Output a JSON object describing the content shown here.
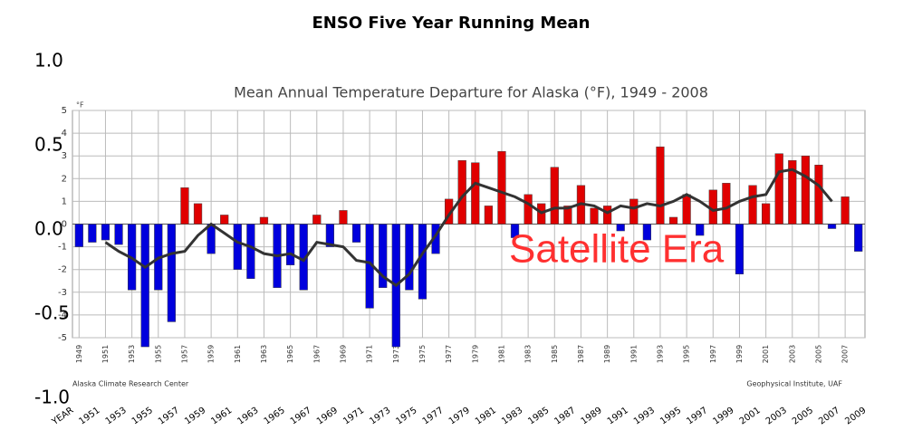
{
  "title": "ENSO Five Year Running Mean",
  "outer_axis": {
    "ylim": [
      -1,
      1
    ],
    "yticks": [
      {
        "value": 1,
        "label": "1.0"
      },
      {
        "value": 0.5,
        "label": "0.5"
      },
      {
        "value": 0,
        "label": "0.0"
      },
      {
        "value": -0.5,
        "label": "-0.5"
      },
      {
        "value": -1,
        "label": "-1.0"
      }
    ],
    "categories": [
      "YEAR",
      "1951",
      "1953",
      "1955",
      "1957",
      "1959",
      "1961",
      "1963",
      "1965",
      "1967",
      "1969",
      "1971",
      "1973",
      "1975",
      "1977",
      "1979",
      "1981",
      "1983",
      "1985",
      "1987",
      "1989",
      "1991",
      "1993",
      "1995",
      "1997",
      "1999",
      "2001",
      "2003",
      "2005",
      "2007",
      "2009"
    ]
  },
  "chart_data": {
    "type": "bar",
    "title": "Mean Annual Temperature Departure for Alaska (°F), 1949 - 2008",
    "y_unit": "°F",
    "x": [
      1949,
      1950,
      1951,
      1952,
      1953,
      1954,
      1955,
      1956,
      1957,
      1958,
      1959,
      1960,
      1961,
      1962,
      1963,
      1964,
      1965,
      1966,
      1967,
      1968,
      1969,
      1970,
      1971,
      1972,
      1973,
      1974,
      1975,
      1976,
      1977,
      1978,
      1979,
      1980,
      1981,
      1982,
      1983,
      1984,
      1985,
      1986,
      1987,
      1988,
      1989,
      1990,
      1991,
      1992,
      1993,
      1994,
      1995,
      1996,
      1997,
      1998,
      1999,
      2000,
      2001,
      2002,
      2003,
      2004,
      2005,
      2006,
      2007,
      2008
    ],
    "values": [
      -1.0,
      -0.8,
      -0.7,
      -0.9,
      -2.9,
      -5.4,
      -2.9,
      -4.3,
      1.6,
      0.9,
      -1.3,
      0.4,
      -2.0,
      -2.4,
      0.3,
      -2.8,
      -1.8,
      -2.9,
      0.4,
      -1.0,
      0.6,
      -0.8,
      -3.7,
      -2.8,
      -5.4,
      -2.9,
      -3.3,
      -1.3,
      1.1,
      2.8,
      2.7,
      0.8,
      3.2,
      -0.6,
      1.3,
      0.9,
      2.5,
      0.8,
      1.7,
      0.7,
      0.8,
      -0.3,
      1.1,
      -0.7,
      3.4,
      0.3,
      1.3,
      -0.5,
      1.5,
      1.8,
      -2.2,
      1.7,
      0.9,
      3.1,
      2.8,
      3.0,
      2.6,
      -0.2,
      1.2,
      -1.2
    ],
    "colors": {
      "positive": "#e00000",
      "negative": "#0000dd"
    },
    "running_mean": {
      "color": "#333333",
      "values": [
        null,
        null,
        -0.8,
        -1.2,
        -1.5,
        -1.9,
        -1.5,
        -1.3,
        -1.2,
        -0.5,
        0.0,
        -0.4,
        -0.8,
        -1.0,
        -1.3,
        -1.4,
        -1.3,
        -1.6,
        -0.8,
        -0.9,
        -1.0,
        -1.6,
        -1.7,
        -2.3,
        -2.7,
        -2.2,
        -1.3,
        -0.5,
        0.4,
        1.2,
        1.8,
        1.6,
        1.4,
        1.2,
        0.9,
        0.5,
        0.7,
        0.7,
        0.9,
        0.8,
        0.5,
        0.8,
        0.7,
        0.9,
        0.8,
        1.0,
        1.3,
        1.0,
        0.6,
        0.7,
        1.0,
        1.2,
        1.3,
        2.3,
        2.4,
        2.1,
        1.7,
        1.0,
        null,
        null
      ]
    },
    "xlim": [
      1948.5,
      2008.5
    ],
    "ylim": [
      -5,
      5
    ],
    "yticks": [
      -5,
      -4,
      -3,
      -2,
      -1,
      0,
      1,
      2,
      3,
      4,
      5
    ],
    "xticks": [
      1949,
      1951,
      1953,
      1955,
      1957,
      1959,
      1961,
      1963,
      1965,
      1967,
      1969,
      1971,
      1973,
      1975,
      1977,
      1979,
      1981,
      1983,
      1985,
      1987,
      1989,
      1991,
      1993,
      1995,
      1997,
      1999,
      2001,
      2003,
      2005,
      2007
    ],
    "grid": true,
    "annotation": "Satellite Era",
    "source_left": "Alaska Climate Research Center",
    "source_right": "Geophysical Institute, UAF"
  }
}
